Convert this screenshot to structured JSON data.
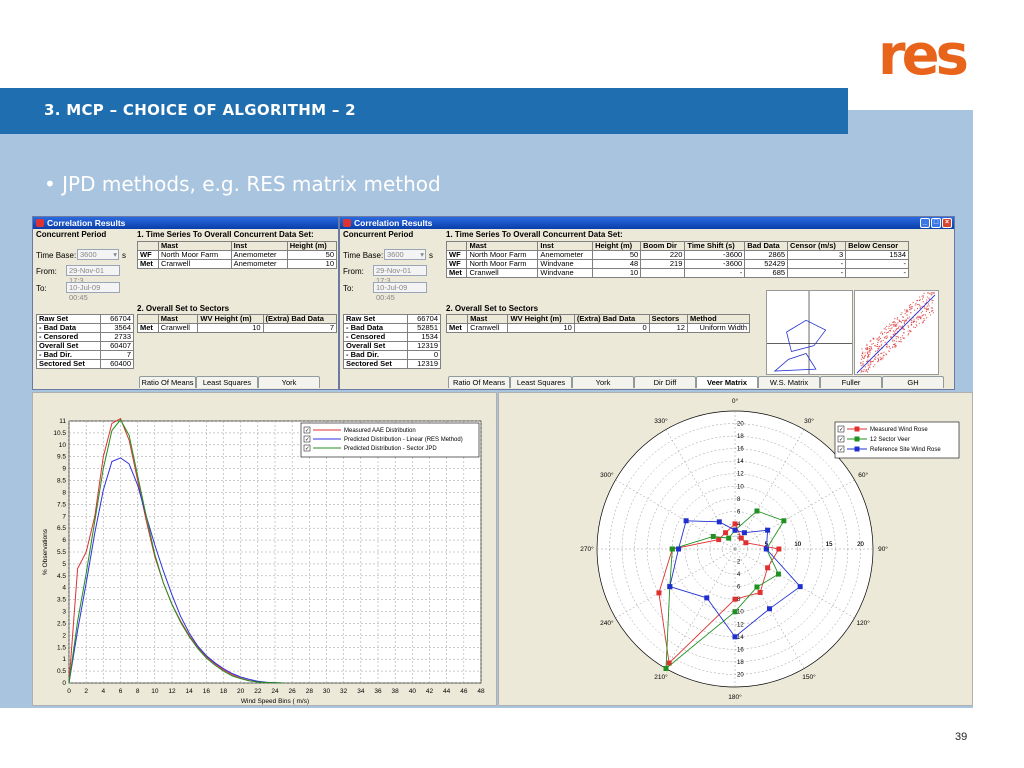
{
  "slide": {
    "logo_text": "res",
    "title": "3.   MCP – CHOICE OF ALGORITHM – 2",
    "bullet": "JPD methods, e.g. RES matrix method",
    "page_number": "39"
  },
  "colors": {
    "brand_orange": "#e8641a",
    "title_blue": "#1f6fb0",
    "panel_blue": "#a9c4de"
  },
  "left_window": {
    "title": "Correlation Results",
    "concurrent_period_label": "Concurrent Period",
    "timebase_label": "Time Base:",
    "timebase_value": "3600",
    "timebase_unit": "s",
    "from_label": "From:",
    "from_value": "29-Nov-01 17:3",
    "to_label": "To:",
    "to_value": "10-Jul-09 00:45",
    "section1": "1.  Time Series To Overall Concurrent Data Set:",
    "ts_headers": [
      "",
      "Mast",
      "Inst",
      "Height (m)"
    ],
    "ts_rows": [
      [
        "WF",
        "North Moor Farm",
        "Anemometer",
        "50"
      ],
      [
        "Met",
        "Cranwell",
        "Anemometer",
        "10"
      ]
    ],
    "section2": "2.  Overall Set to Sectors",
    "sec_headers": [
      "",
      "Mast",
      "WV Height (m)",
      "(Extra) Bad Data"
    ],
    "sec_rows": [
      [
        "Met",
        "Cranwell",
        "10",
        "7"
      ]
    ],
    "stats": [
      [
        "Raw Set",
        "66704"
      ],
      [
        "- Bad Data",
        "3564"
      ],
      [
        "- Censored",
        "2733"
      ],
      [
        "Overall Set",
        "60407"
      ],
      [
        "- Bad Dir.",
        "7"
      ],
      [
        "Sectored Set",
        "60400"
      ]
    ],
    "tabs": [
      "Ratio Of Means",
      "Least Squares",
      "York"
    ]
  },
  "right_window": {
    "title": "Correlation Results",
    "concurrent_period_label": "Concurrent Period",
    "timebase_label": "Time Base:",
    "timebase_value": "3600",
    "timebase_unit": "s",
    "from_label": "From:",
    "from_value": "29-Nov-01 17:3",
    "to_label": "To:",
    "to_value": "10-Jul-09 00:45",
    "section1": "1.  Time Series To Overall Concurrent Data Set:",
    "ts_headers": [
      "",
      "Mast",
      "Inst",
      "Height (m)",
      "Boom Dir",
      "Time Shift (s)",
      "Bad Data",
      "Censor (m/s)",
      "Below Censor"
    ],
    "ts_rows": [
      [
        "WF",
        "North Moor Farm",
        "Anemometer",
        "50",
        "220",
        "-3600",
        "2865",
        "3",
        "1534"
      ],
      [
        "WF",
        "North Moor Farm",
        "Windvane",
        "48",
        "219",
        "-3600",
        "52429",
        "-",
        "-"
      ],
      [
        "Met",
        "Cranwell",
        "Windvane",
        "10",
        "",
        "-",
        "685",
        "-",
        "-"
      ]
    ],
    "section2": "2.  Overall Set to Sectors",
    "sec_headers": [
      "",
      "Mast",
      "WV Height (m)",
      "(Extra) Bad Data",
      "Sectors",
      "Method"
    ],
    "sec_rows": [
      [
        "Met",
        "Cranwell",
        "10",
        "0",
        "12",
        "Uniform Width"
      ]
    ],
    "stats": [
      [
        "Raw Set",
        "66704"
      ],
      [
        "- Bad Data",
        "52851"
      ],
      [
        "- Censored",
        "1534"
      ],
      [
        "Overall Set",
        "12319"
      ],
      [
        "- Bad Dir.",
        "0"
      ],
      [
        "Sectored Set",
        "12319"
      ]
    ],
    "tabs": [
      "Ratio Of Means",
      "Least Squares",
      "York",
      "Dir Diff",
      "Veer Matrix",
      "W.S. Matrix",
      "Fuller",
      "GH"
    ],
    "active_tab": "Veer Matrix"
  },
  "chart_data": [
    {
      "type": "line",
      "title": "",
      "xlabel": "Wind Speed Bins ( m/s)",
      "ylabel": "% Observations",
      "xlim": [
        0,
        48
      ],
      "ylim": [
        0,
        11
      ],
      "x_ticks": [
        0,
        2,
        4,
        6,
        8,
        10,
        12,
        14,
        16,
        18,
        20,
        22,
        24,
        26,
        28,
        30,
        32,
        34,
        36,
        38,
        40,
        42,
        44,
        46,
        48
      ],
      "y_ticks": [
        0,
        0.5,
        1,
        1.5,
        2,
        2.5,
        3,
        3.5,
        4,
        4.5,
        5,
        5.5,
        6,
        6.5,
        7,
        7.5,
        8,
        8.5,
        9,
        9.5,
        10,
        10.5,
        11
      ],
      "grid": true,
      "legend_position": "top-right",
      "x": [
        0,
        1,
        2,
        3,
        4,
        5,
        6,
        7,
        8,
        9,
        10,
        11,
        12,
        13,
        14,
        15,
        16,
        17,
        18,
        19,
        20,
        21,
        22,
        23,
        24,
        25
      ],
      "series": [
        {
          "name": "Measured AAE Distribution",
          "color": "#e03030",
          "values": [
            0,
            4.8,
            5.5,
            7,
            9.5,
            10.9,
            11.1,
            10.2,
            8.5,
            6.8,
            5.3,
            4.2,
            3.3,
            2.6,
            2.0,
            1.5,
            1.1,
            0.8,
            0.55,
            0.35,
            0.2,
            0.1,
            0.05,
            0.02,
            0.01,
            0
          ]
        },
        {
          "name": "Predicted Distribution - Linear (RES Method)",
          "color": "#3030e0",
          "values": [
            0,
            2.2,
            4.2,
            6.3,
            8.1,
            9.3,
            9.45,
            9.2,
            8.3,
            7.0,
            5.8,
            4.7,
            3.7,
            2.8,
            2.1,
            1.55,
            1.15,
            0.85,
            0.6,
            0.4,
            0.25,
            0.15,
            0.07,
            0.03,
            0.01,
            0
          ]
        },
        {
          "name": "Predicted Distribution - Sector JPD",
          "color": "#209020",
          "values": [
            0,
            2.6,
            4.6,
            6.8,
            9.0,
            10.6,
            11.05,
            10.4,
            8.7,
            7.0,
            5.4,
            4.2,
            3.3,
            2.55,
            1.95,
            1.45,
            1.05,
            0.75,
            0.5,
            0.3,
            0.18,
            0.09,
            0.04,
            0.02,
            0.01,
            0
          ]
        }
      ]
    },
    {
      "type": "radar",
      "title": "",
      "angle_labels": [
        "0°",
        "30°",
        "60°",
        "90°",
        "120°",
        "150°",
        "180°",
        "210°",
        "240°",
        "270°",
        "300°",
        "330°"
      ],
      "radial_ticks": [
        2,
        4,
        6,
        8,
        10,
        12,
        14,
        16,
        18,
        20
      ],
      "horizontal_tick_labels": [
        "20",
        "15",
        "10",
        "5",
        "5",
        "10",
        "15",
        "20"
      ],
      "rlim": [
        0,
        22
      ],
      "grid": true,
      "legend_position": "top-right",
      "series": [
        {
          "name": "Measured Wind Rose",
          "color": "#e03030",
          "values": [
            4,
            2,
            2,
            7,
            6,
            8,
            8,
            21,
            14,
            10,
            3,
            3
          ]
        },
        {
          "name": "12 Sector Veer",
          "color": "#209020",
          "values": [
            3,
            7,
            9,
            5,
            8,
            7,
            10,
            22,
            12,
            10,
            4,
            2
          ]
        },
        {
          "name": "Reference Site Wind Rose",
          "color": "#2030d0",
          "values": [
            3,
            3,
            6,
            5,
            12,
            11,
            14,
            9,
            12,
            9,
            9,
            5
          ]
        }
      ]
    }
  ]
}
